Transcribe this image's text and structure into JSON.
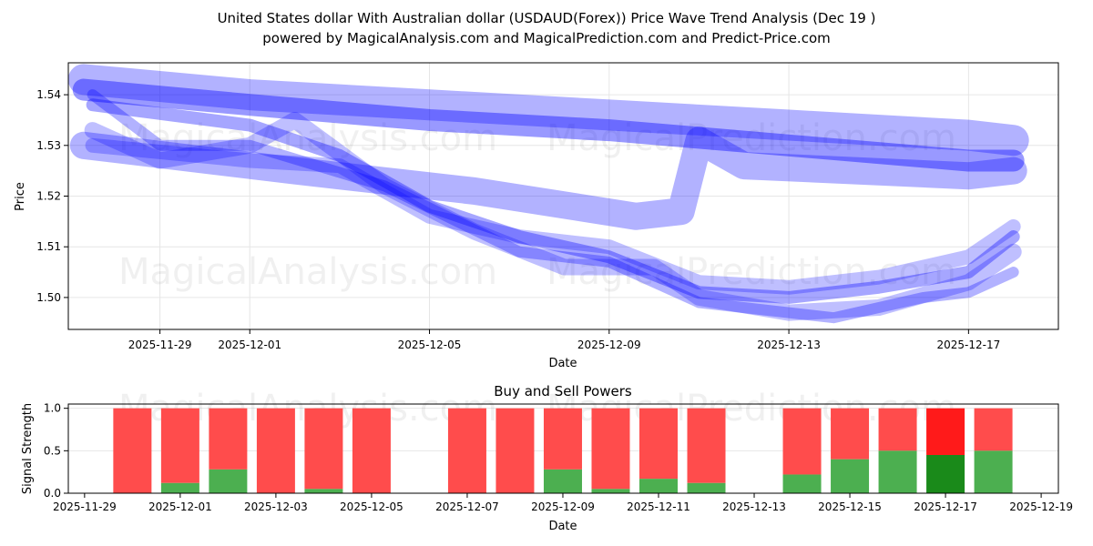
{
  "chart_data": [
    {
      "type": "line",
      "title": "United States dollar With Australian dollar (USDAUD(Forex)) Price Wave Trend Analysis (Dec 19 )",
      "subtitle": "powered by MagicalAnalysis.com and MagicalPrediction.com and Predict-Price.com",
      "xlabel": "Date",
      "ylabel": "Price",
      "xlim": [
        "2025-11-26.96",
        "2025-12-19.0"
      ],
      "ylim": [
        1.4937,
        1.5463
      ],
      "xticks": [
        "2025-11-29",
        "2025-12-01",
        "2025-12-05",
        "2025-12-09",
        "2025-12-13",
        "2025-12-17"
      ],
      "yticks": [
        1.5,
        1.51,
        1.52,
        1.53,
        1.54
      ],
      "watermarks": [
        "MagicalAnalysis.com",
        "MagicalPrediction.com"
      ],
      "color": "#0000ff",
      "series": [
        {
          "name": "wave-1",
          "width": 34,
          "opacity": 0.3,
          "points": [
            [
              "2025-11-27.3",
              1.543
            ],
            [
              "2025-12-01",
              1.54
            ],
            [
              "2025-12-05",
              1.538
            ],
            [
              "2025-12-09",
              1.536
            ],
            [
              "2025-12-13",
              1.534
            ],
            [
              "2025-12-17",
              1.532
            ],
            [
              "2025-12-18",
              1.531
            ]
          ]
        },
        {
          "name": "wave-2",
          "width": 24,
          "opacity": 0.4,
          "points": [
            [
              "2025-11-27.3",
              1.541
            ],
            [
              "2025-12-01",
              1.538
            ],
            [
              "2025-12-05",
              1.535
            ],
            [
              "2025-12-09",
              1.533
            ],
            [
              "2025-12-13",
              1.53
            ],
            [
              "2025-12-17",
              1.527
            ],
            [
              "2025-12-18",
              1.527
            ]
          ]
        },
        {
          "name": "wave-3",
          "width": 30,
          "opacity": 0.3,
          "points": [
            [
              "2025-11-27.3",
              1.53
            ],
            [
              "2025-12-02",
              1.525
            ],
            [
              "2025-12-06",
              1.521
            ],
            [
              "2025-12-09.6",
              1.516
            ],
            [
              "2025-12-10.6",
              1.517
            ],
            [
              "2025-12-11",
              1.531
            ],
            [
              "2025-12-12",
              1.526
            ],
            [
              "2025-12-17",
              1.524
            ],
            [
              "2025-12-18",
              1.525
            ]
          ]
        },
        {
          "name": "wave-4",
          "width": 14,
          "opacity": 0.35,
          "points": [
            [
              "2025-11-27.5",
              1.538
            ],
            [
              "2025-12-01",
              1.534
            ],
            [
              "2025-12-03",
              1.528
            ],
            [
              "2025-12-05",
              1.518
            ],
            [
              "2025-12-07",
              1.512
            ],
            [
              "2025-12-09",
              1.508
            ],
            [
              "2025-12-11",
              1.501
            ],
            [
              "2025-12-13",
              1.5
            ],
            [
              "2025-12-15",
              1.502
            ],
            [
              "2025-12-17",
              1.505
            ],
            [
              "2025-12-18",
              1.512
            ]
          ]
        },
        {
          "name": "wave-5",
          "width": 18,
          "opacity": 0.25,
          "points": [
            [
              "2025-11-27.5",
              1.533
            ],
            [
              "2025-11-29",
              1.527
            ],
            [
              "2025-12-01",
              1.53
            ],
            [
              "2025-12-02",
              1.535
            ],
            [
              "2025-12-04",
              1.522
            ],
            [
              "2025-12-06",
              1.513
            ],
            [
              "2025-12-08",
              1.506
            ],
            [
              "2025-12-10",
              1.506
            ],
            [
              "2025-12-11",
              1.5
            ],
            [
              "2025-12-13",
              1.497
            ],
            [
              "2025-12-15",
              1.498
            ],
            [
              "2025-12-17",
              1.503
            ],
            [
              "2025-12-18",
              1.509
            ]
          ]
        },
        {
          "name": "wave-6",
          "width": 16,
          "opacity": 0.25,
          "points": [
            [
              "2025-11-27.5",
              1.53
            ],
            [
              "2025-12-01",
              1.527
            ],
            [
              "2025-12-03",
              1.526
            ],
            [
              "2025-12-05",
              1.516
            ],
            [
              "2025-12-07",
              1.512
            ],
            [
              "2025-12-09",
              1.51
            ],
            [
              "2025-12-11",
              1.503
            ],
            [
              "2025-12-13",
              1.502
            ],
            [
              "2025-12-15",
              1.504
            ],
            [
              "2025-12-17",
              1.508
            ],
            [
              "2025-12-18",
              1.514
            ]
          ]
        },
        {
          "name": "wave-7",
          "width": 12,
          "opacity": 0.3,
          "points": [
            [
              "2025-11-27.5",
              1.54
            ],
            [
              "2025-11-29",
              1.53
            ],
            [
              "2025-12-01",
              1.53
            ],
            [
              "2025-12-04",
              1.522
            ],
            [
              "2025-12-07",
              1.509
            ],
            [
              "2025-12-09",
              1.507
            ],
            [
              "2025-12-11",
              1.499
            ],
            [
              "2025-12-14",
              1.496
            ],
            [
              "2025-12-16",
              1.5
            ],
            [
              "2025-12-17",
              1.501
            ],
            [
              "2025-12-18",
              1.505
            ]
          ]
        }
      ]
    },
    {
      "type": "bar",
      "title": "Buy and Sell Powers",
      "xlabel": "Date",
      "ylabel": "Signal Strength",
      "xlim": [
        "2025-11-28.66",
        "2025-12-19.36"
      ],
      "ylim": [
        0,
        1.05
      ],
      "xticks": [
        "2025-11-29",
        "2025-12-01",
        "2025-12-03",
        "2025-12-05",
        "2025-12-07",
        "2025-12-09",
        "2025-12-11",
        "2025-12-13",
        "2025-12-15",
        "2025-12-17",
        "2025-12-19"
      ],
      "yticks": [
        "0.0",
        "0.5",
        "1.0"
      ],
      "buy_color": "#4caf50",
      "sell_color": "#ff4c4c",
      "highlight_buy": "#1a8a1a",
      "highlight_sell": "#ff1a1a",
      "dates": [
        "2025-11-30",
        "2025-12-01",
        "2025-12-02",
        "2025-12-03",
        "2025-12-04",
        "2025-12-05",
        "2025-12-07",
        "2025-12-08",
        "2025-12-09",
        "2025-12-10",
        "2025-12-11",
        "2025-12-12",
        "2025-12-14",
        "2025-12-15",
        "2025-12-16",
        "2025-12-17",
        "2025-12-18"
      ],
      "buy": [
        0,
        0.12,
        0.28,
        0,
        0.05,
        0,
        0,
        0,
        0.28,
        0.05,
        0.17,
        0.12,
        0.22,
        0.4,
        0.5,
        0.45,
        0.5
      ],
      "highlight_index": 15,
      "watermarks": [
        "MagicalAnalysis.com",
        "MagicalPrediction.com"
      ]
    }
  ]
}
